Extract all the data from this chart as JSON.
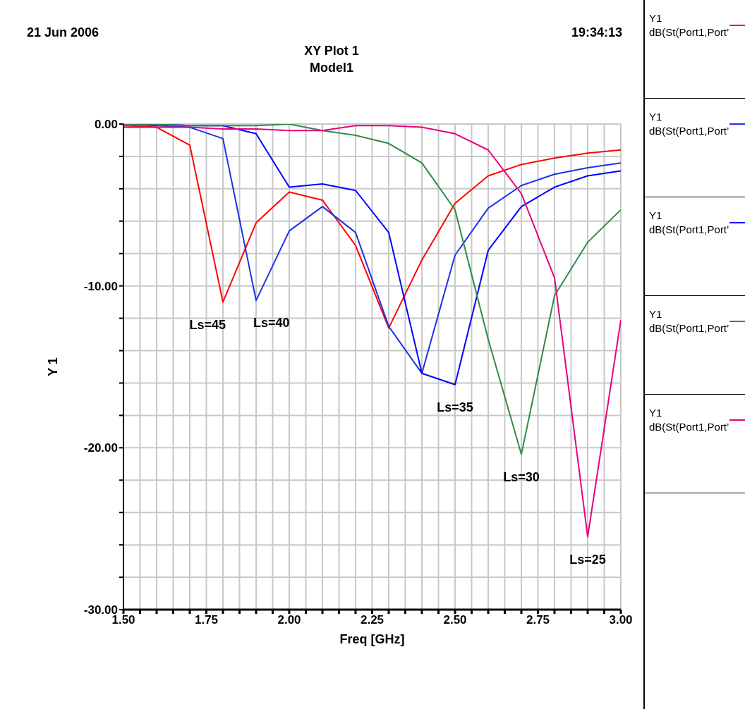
{
  "chart_data": {
    "type": "line",
    "title": "XY Plot 1",
    "subtitle": "Model1",
    "xlabel": "Freq [GHz]",
    "ylabel": "Y 1",
    "x": [
      1.5,
      1.6,
      1.7,
      1.8,
      1.9,
      2.0,
      2.1,
      2.2,
      2.3,
      2.4,
      2.5,
      2.6,
      2.7,
      2.8,
      2.9,
      3.0
    ],
    "series": [
      {
        "name": "Y1 dB(St(Port1,Port’",
        "color": "#ff0000",
        "values": [
          -0.1,
          -0.2,
          -1.3,
          -11.0,
          -6.1,
          -4.2,
          -4.7,
          -7.5,
          -12.6,
          -8.4,
          -4.9,
          -3.2,
          -2.5,
          -2.1,
          -1.8,
          -1.6
        ]
      },
      {
        "name": "Y1 dB(St(Port1,Port’",
        "color": "#1a33e6",
        "values": [
          0,
          -0.1,
          -0.2,
          -0.9,
          -10.9,
          -6.6,
          -5.1,
          -6.7,
          -12.5,
          -15.4,
          -8.1,
          -5.2,
          -3.8,
          -3.1,
          -2.7,
          -2.4
        ]
      },
      {
        "name": "Y1 dB(St(Port1,Port’",
        "color": "#0000ff",
        "values": [
          0,
          0,
          -0.1,
          -0.1,
          -0.6,
          -3.9,
          -3.7,
          -4.1,
          -6.7,
          -15.4,
          -16.1,
          -7.8,
          -5.1,
          -3.9,
          -3.2,
          -2.9
        ]
      },
      {
        "name": "Y1 dB(St(Port1,Port’",
        "color": "#2e8b47",
        "values": [
          0,
          0,
          -0.1,
          -0.1,
          -0.1,
          0,
          -0.4,
          -0.7,
          -1.2,
          -2.4,
          -5.3,
          -13.3,
          -20.4,
          -10.6,
          -7.3,
          -5.3
        ]
      },
      {
        "name": "Y1 dB(St(Port1,Port’",
        "color": "#e6007e",
        "values": [
          -0.2,
          -0.2,
          -0.2,
          -0.3,
          -0.3,
          -0.4,
          -0.4,
          -0.1,
          -0.1,
          -0.2,
          -0.6,
          -1.6,
          -4.3,
          -9.5,
          -25.5,
          -12.1
        ]
      }
    ],
    "xlim": [
      1.5,
      3.0
    ],
    "xticks": [
      {
        "value": 1.5,
        "label": "1.50"
      },
      {
        "value": 1.55,
        "label": null
      },
      {
        "value": 1.6,
        "label": null
      },
      {
        "value": 1.65,
        "label": null
      },
      {
        "value": 1.7,
        "label": null
      },
      {
        "value": 1.75,
        "label": "1.75"
      },
      {
        "value": 1.8,
        "label": null
      },
      {
        "value": 1.85,
        "label": null
      },
      {
        "value": 1.9,
        "label": null
      },
      {
        "value": 1.95,
        "label": null
      },
      {
        "value": 2.0,
        "label": "2.00"
      },
      {
        "value": 2.05,
        "label": null
      },
      {
        "value": 2.1,
        "label": null
      },
      {
        "value": 2.15,
        "label": null
      },
      {
        "value": 2.2,
        "label": null
      },
      {
        "value": 2.25,
        "label": "2.25"
      },
      {
        "value": 2.3,
        "label": null
      },
      {
        "value": 2.35,
        "label": null
      },
      {
        "value": 2.4,
        "label": null
      },
      {
        "value": 2.45,
        "label": null
      },
      {
        "value": 2.5,
        "label": "2.50"
      },
      {
        "value": 2.55,
        "label": null
      },
      {
        "value": 2.6,
        "label": null
      },
      {
        "value": 2.65,
        "label": null
      },
      {
        "value": 2.7,
        "label": null
      },
      {
        "value": 2.75,
        "label": "2.75"
      },
      {
        "value": 2.8,
        "label": null
      },
      {
        "value": 2.85,
        "label": null
      },
      {
        "value": 2.9,
        "label": null
      },
      {
        "value": 2.95,
        "label": null
      },
      {
        "value": 3.0,
        "label": "3.00"
      }
    ],
    "ylim": [
      -30,
      0
    ],
    "yticks": [
      {
        "value": -30,
        "label": "-30.00"
      },
      {
        "value": -28,
        "label": null
      },
      {
        "value": -26,
        "label": null
      },
      {
        "value": -24,
        "label": null
      },
      {
        "value": -22,
        "label": null
      },
      {
        "value": -20,
        "label": "-20.00"
      },
      {
        "value": -18,
        "label": null
      },
      {
        "value": -16,
        "label": null
      },
      {
        "value": -14,
        "label": null
      },
      {
        "value": -12,
        "label": null
      },
      {
        "value": -10,
        "label": "-10.00"
      },
      {
        "value": -8,
        "label": null
      },
      {
        "value": -6,
        "label": null
      },
      {
        "value": -4,
        "label": null
      },
      {
        "value": -2,
        "label": null
      },
      {
        "value": 0,
        "label": "0.00"
      }
    ],
    "grid": true,
    "legend": "right",
    "annotations": [
      "21 Jun 2006",
      "19:34:13",
      {
        "text": "Ls=45",
        "x": 1.8,
        "y": -11.0
      },
      {
        "text": "Ls=40",
        "x": 1.9,
        "y": -10.9
      },
      {
        "text": "Ls=35",
        "x": 2.5,
        "y": -16.1
      },
      {
        "text": "Ls=30",
        "x": 2.7,
        "y": -20.4
      },
      {
        "text": "Ls=25",
        "x": 2.9,
        "y": -25.5
      }
    ]
  }
}
